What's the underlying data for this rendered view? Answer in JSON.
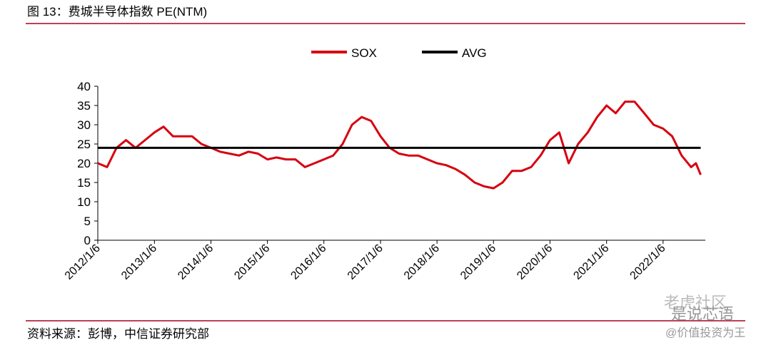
{
  "chart_data": {
    "type": "line",
    "title": "图 13：费城半导体指数 PE(NTM)",
    "source": "资料来源：彭博，中信证券研究部",
    "watermarks": [
      "老虎社区",
      "是说芯语",
      "@价值投资为王"
    ],
    "x": [
      "2012/1/6",
      "2012/3/6",
      "2012/5/6",
      "2012/7/6",
      "2012/9/6",
      "2012/11/6",
      "2013/1/6",
      "2013/3/6",
      "2013/5/6",
      "2013/7/6",
      "2013/9/6",
      "2013/11/6",
      "2014/1/6",
      "2014/3/6",
      "2014/5/6",
      "2014/7/6",
      "2014/9/6",
      "2014/11/6",
      "2015/1/6",
      "2015/3/6",
      "2015/5/6",
      "2015/7/6",
      "2015/9/6",
      "2015/11/6",
      "2016/1/6",
      "2016/3/6",
      "2016/5/6",
      "2016/7/6",
      "2016/9/6",
      "2016/11/6",
      "2017/1/6",
      "2017/3/6",
      "2017/5/6",
      "2017/7/6",
      "2017/9/6",
      "2017/11/6",
      "2018/1/6",
      "2018/3/6",
      "2018/5/6",
      "2018/7/6",
      "2018/9/6",
      "2018/11/6",
      "2019/1/6",
      "2019/3/6",
      "2019/5/6",
      "2019/7/6",
      "2019/9/6",
      "2019/11/6",
      "2020/1/6",
      "2020/3/6",
      "2020/5/6",
      "2020/7/6",
      "2020/9/6",
      "2020/11/6",
      "2021/1/6",
      "2021/3/6",
      "2021/5/6",
      "2021/7/6",
      "2021/9/6",
      "2021/11/6",
      "2022/1/6",
      "2022/3/6",
      "2022/5/6",
      "2022/7/6",
      "2022/8/6",
      "2022/9/6"
    ],
    "series": [
      {
        "name": "SOX",
        "color": "#d7000f",
        "values": [
          20,
          19,
          24,
          26,
          24,
          26,
          28,
          29.5,
          27,
          27,
          27,
          25,
          24,
          23,
          22.5,
          22,
          23,
          22.5,
          21,
          21.5,
          21,
          21,
          19,
          20,
          21,
          22,
          25,
          30,
          32,
          31,
          27,
          24,
          22.5,
          22,
          22,
          21,
          20,
          19.5,
          18.5,
          17,
          15,
          14,
          13.5,
          15,
          18,
          18,
          19,
          22,
          26,
          28,
          20,
          25,
          28,
          32,
          35,
          33,
          36,
          36,
          33,
          30,
          29,
          27,
          22,
          19,
          20,
          17
        ]
      },
      {
        "name": "AVG",
        "color": "#000000",
        "values": [
          24,
          24,
          24,
          24,
          24,
          24,
          24,
          24,
          24,
          24,
          24,
          24,
          24,
          24,
          24,
          24,
          24,
          24,
          24,
          24,
          24,
          24,
          24,
          24,
          24,
          24,
          24,
          24,
          24,
          24,
          24,
          24,
          24,
          24,
          24,
          24,
          24,
          24,
          24,
          24,
          24,
          24,
          24,
          24,
          24,
          24,
          24,
          24,
          24,
          24,
          24,
          24,
          24,
          24,
          24,
          24,
          24,
          24,
          24,
          24,
          24,
          24,
          24,
          24,
          24,
          24
        ]
      }
    ],
    "xlim": [
      "2012/1/6",
      "2022/10/6"
    ],
    "xticks": [
      "2012/1/6",
      "2013/1/6",
      "2014/1/6",
      "2015/1/6",
      "2016/1/6",
      "2017/1/6",
      "2018/1/6",
      "2019/1/6",
      "2020/1/6",
      "2021/1/6",
      "2022/1/6"
    ],
    "ylim": [
      0,
      40
    ],
    "yticks": [
      0,
      5,
      10,
      15,
      20,
      25,
      30,
      35,
      40
    ],
    "legend": "top"
  }
}
